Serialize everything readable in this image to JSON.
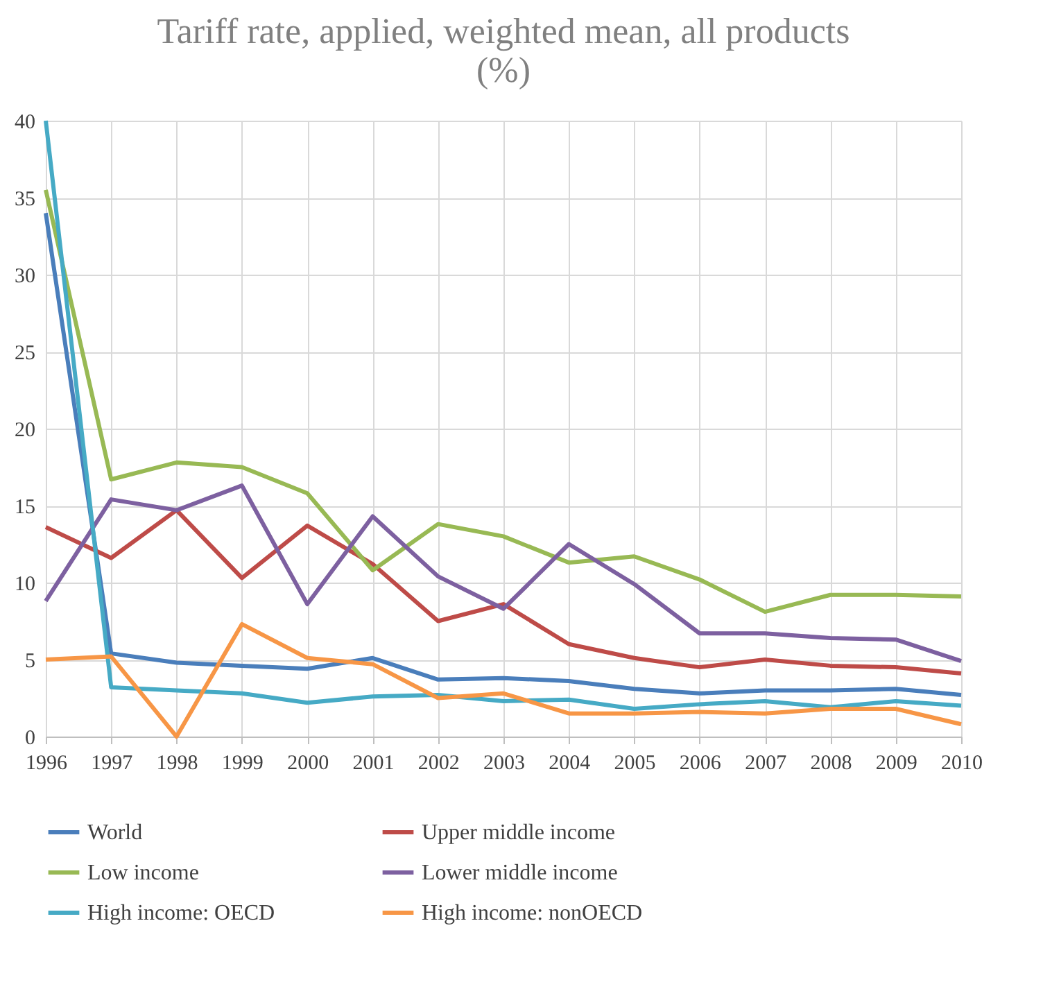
{
  "chart_data": {
    "type": "line",
    "title": "Tariff rate, applied, weighted mean, all products (%)",
    "categories": [
      "1996",
      "1997",
      "1998",
      "1999",
      "2000",
      "2001",
      "2002",
      "2003",
      "2004",
      "2005",
      "2006",
      "2007",
      "2008",
      "2009",
      "2010"
    ],
    "series": [
      {
        "name": "World",
        "color": "#4a7ebb",
        "values": [
          34.0,
          5.4,
          4.8,
          4.6,
          4.4,
          5.1,
          3.7,
          3.8,
          3.6,
          3.1,
          2.8,
          3.0,
          3.0,
          3.1,
          2.7
        ]
      },
      {
        "name": "Upper middle income",
        "color": "#be4b48",
        "values": [
          13.6,
          11.6,
          14.7,
          10.3,
          13.7,
          11.2,
          7.5,
          8.6,
          6.0,
          5.1,
          4.5,
          5.0,
          4.6,
          4.5,
          4.1
        ]
      },
      {
        "name": "Low income",
        "color": "#98b954",
        "values": [
          35.5,
          16.7,
          17.8,
          17.5,
          15.8,
          10.8,
          13.8,
          13.0,
          11.3,
          11.7,
          10.2,
          8.1,
          9.2,
          9.2,
          9.1
        ]
      },
      {
        "name": "Lower middle income",
        "color": "#7d60a0",
        "values": [
          8.8,
          15.4,
          14.7,
          16.3,
          8.6,
          14.3,
          10.4,
          8.3,
          12.5,
          9.9,
          6.7,
          6.7,
          6.4,
          6.3,
          4.9
        ]
      },
      {
        "name": "High income: OECD",
        "color": "#46aac5",
        "values": [
          40.0,
          3.2,
          3.0,
          2.8,
          2.2,
          2.6,
          2.7,
          2.3,
          2.4,
          1.8,
          2.1,
          2.3,
          1.9,
          2.3,
          2.0
        ]
      },
      {
        "name": "High income: nonOECD",
        "color": "#f79646",
        "values": [
          5.0,
          5.2,
          0.0,
          7.3,
          5.1,
          4.7,
          2.5,
          2.8,
          1.5,
          1.5,
          1.6,
          1.5,
          1.8,
          1.8,
          0.8
        ]
      }
    ],
    "ylim": [
      0,
      40
    ],
    "yticks": [
      0,
      5,
      10,
      15,
      20,
      25,
      30,
      35,
      40
    ],
    "grid": true,
    "legend": "bottom",
    "marker": "none",
    "line_style": "solid"
  }
}
